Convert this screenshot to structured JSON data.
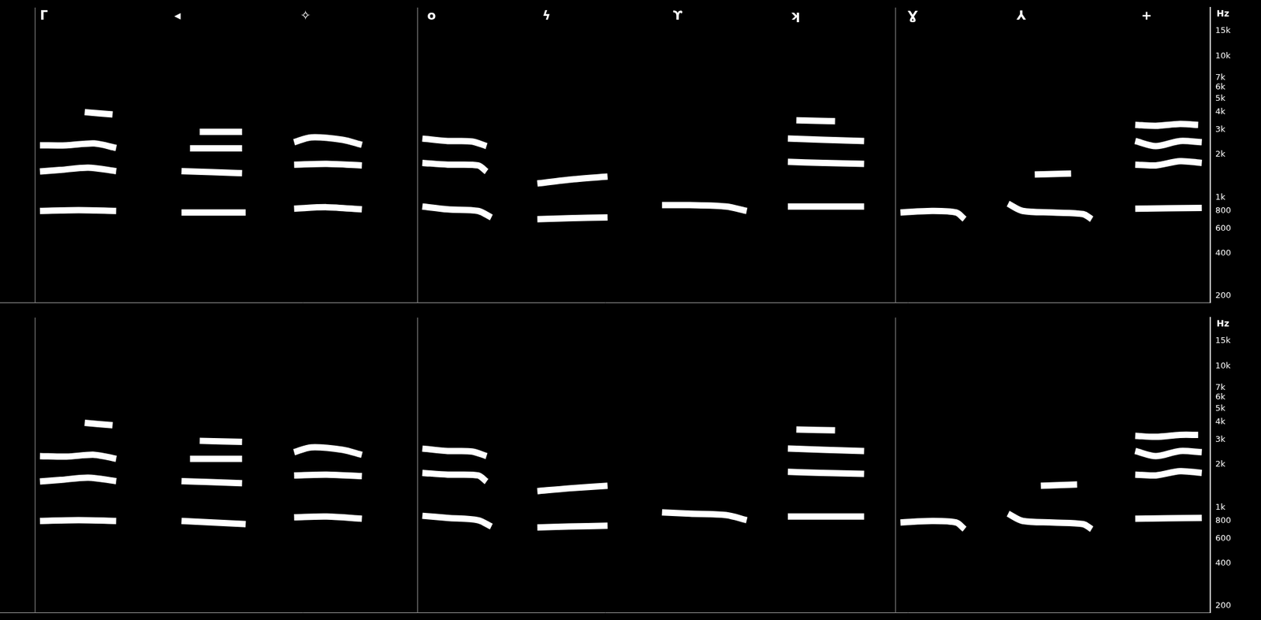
{
  "chart_data": [
    {
      "type": "line",
      "y_label": "Hz",
      "log": "y",
      "grid": false,
      "tick_labels": "y",
      "color": "#ffffff",
      "segment_labels": [
        "ᒥ",
        "◂",
        "✧",
        "o",
        "ϟ",
        "ϒ",
        "ʞ",
        "Ɣ",
        "⅄",
        "+"
      ],
      "segment_x": [
        3.2,
        14.3,
        24.7,
        35.2,
        44.7,
        55.5,
        65.2,
        74.9,
        83.9,
        94.2
      ],
      "boundaries": [
        2.9,
        34.5,
        74.0
      ],
      "xlim": [
        0,
        100
      ],
      "ylim": [
        180,
        22000
      ],
      "yticks": [
        200,
        400,
        600,
        800,
        {
          "value": 1000,
          "label": "1k"
        },
        {
          "value": 2000,
          "label": "2k"
        },
        {
          "value": 3000,
          "label": "3k"
        },
        {
          "value": 4000,
          "label": "4k"
        },
        {
          "value": 5000,
          "label": "5k"
        },
        {
          "value": 6000,
          "label": "6k"
        },
        {
          "value": 7000,
          "label": "7k"
        },
        {
          "value": 10000,
          "label": "10k"
        },
        {
          "value": 15000,
          "label": "15k"
        }
      ],
      "series": [
        {
          "x": [
            3.3,
            6.5,
            9.6
          ],
          "values": [
            800,
            810,
            800
          ]
        },
        {
          "x": [
            3.3,
            5,
            7.3,
            9.6
          ],
          "values": [
            1520,
            1560,
            1620,
            1530
          ]
        },
        {
          "x": [
            3.3,
            5.5,
            7.8,
            9.6
          ],
          "values": [
            2330,
            2330,
            2400,
            2230
          ]
        },
        {
          "x": [
            7,
            9.3
          ],
          "values": [
            4000,
            3850
          ]
        },
        {
          "x": [
            15,
            20.3
          ],
          "values": [
            780,
            780
          ]
        },
        {
          "x": [
            15,
            20
          ],
          "values": [
            1530,
            1480
          ]
        },
        {
          "x": [
            15.7,
            20
          ],
          "values": [
            2220,
            2220
          ]
        },
        {
          "x": [
            16.5,
            20
          ],
          "values": [
            2900,
            2900
          ]
        },
        {
          "x": [
            24.3,
            27,
            29.9
          ],
          "values": [
            830,
            850,
            820
          ]
        },
        {
          "x": [
            24.3,
            27,
            29.9
          ],
          "values": [
            1700,
            1720,
            1680
          ]
        },
        {
          "x": [
            24.3,
            25.7,
            28.3,
            29.9
          ],
          "values": [
            2450,
            2650,
            2550,
            2350
          ]
        },
        {
          "x": [
            34.9,
            37,
            39.5,
            40.6
          ],
          "values": [
            860,
            820,
            800,
            720
          ]
        },
        {
          "x": [
            34.9,
            37,
            39.5,
            40.2
          ],
          "values": [
            1750,
            1700,
            1680,
            1520
          ]
        },
        {
          "x": [
            34.9,
            37,
            39,
            40.2
          ],
          "values": [
            2600,
            2500,
            2480,
            2300
          ]
        },
        {
          "x": [
            44.4,
            47,
            50.2
          ],
          "values": [
            700,
            710,
            720
          ]
        },
        {
          "x": [
            44.4,
            47,
            50.2
          ],
          "values": [
            1250,
            1330,
            1400
          ]
        },
        {
          "x": [
            54.7,
            57,
            60,
            61.7
          ],
          "values": [
            880,
            880,
            860,
            800
          ]
        },
        {
          "x": [
            65.1,
            71.4
          ],
          "values": [
            860,
            860
          ]
        },
        {
          "x": [
            65.1,
            68,
            71.4
          ],
          "values": [
            1780,
            1750,
            1720
          ]
        },
        {
          "x": [
            65.1,
            68,
            71.4
          ],
          "values": [
            2600,
            2550,
            2500
          ]
        },
        {
          "x": [
            65.8,
            69
          ],
          "values": [
            3500,
            3450
          ]
        },
        {
          "x": [
            74.4,
            77,
            79,
            79.7
          ],
          "values": [
            780,
            800,
            780,
            700
          ]
        },
        {
          "x": [
            83.3,
            84.5,
            87,
            89.5,
            90.2
          ],
          "values": [
            900,
            800,
            780,
            760,
            700
          ]
        },
        {
          "x": [
            85.5,
            88.5
          ],
          "values": [
            1450,
            1470
          ]
        },
        {
          "x": [
            93.8,
            99.3
          ],
          "values": [
            830,
            840
          ]
        },
        {
          "x": [
            93.8,
            95.5,
            97.5,
            99.3
          ],
          "values": [
            1700,
            1680,
            1800,
            1750
          ]
        },
        {
          "x": [
            93.8,
            95.5,
            97.5,
            99.3
          ],
          "values": [
            2500,
            2300,
            2500,
            2450
          ]
        },
        {
          "x": [
            93.8,
            95.5,
            97.5,
            99
          ],
          "values": [
            3250,
            3200,
            3300,
            3250
          ]
        }
      ]
    },
    {
      "type": "line",
      "y_label": "Hz",
      "log": "y",
      "grid": false,
      "tick_labels": "y",
      "color": "#ffffff",
      "boundaries": [
        2.9,
        34.5,
        74.0
      ],
      "xlim": [
        0,
        100
      ],
      "ylim": [
        180,
        22000
      ],
      "yticks": [
        200,
        400,
        600,
        800,
        {
          "value": 1000,
          "label": "1k"
        },
        {
          "value": 2000,
          "label": "2k"
        },
        {
          "value": 3000,
          "label": "3k"
        },
        {
          "value": 4000,
          "label": "4k"
        },
        {
          "value": 5000,
          "label": "5k"
        },
        {
          "value": 6000,
          "label": "6k"
        },
        {
          "value": 7000,
          "label": "7k"
        },
        {
          "value": 10000,
          "label": "10k"
        },
        {
          "value": 15000,
          "label": "15k"
        }
      ],
      "series": [
        {
          "x": [
            3.3,
            6.5,
            9.6
          ],
          "values": [
            800,
            810,
            800
          ]
        },
        {
          "x": [
            3.3,
            5,
            7.3,
            9.6
          ],
          "values": [
            1520,
            1560,
            1620,
            1530
          ]
        },
        {
          "x": [
            3.3,
            5.5,
            7.8,
            9.6
          ],
          "values": [
            2300,
            2280,
            2350,
            2200
          ]
        },
        {
          "x": [
            7,
            9.3
          ],
          "values": [
            3950,
            3800
          ]
        },
        {
          "x": [
            15,
            20.3
          ],
          "values": [
            800,
            760
          ]
        },
        {
          "x": [
            15,
            20
          ],
          "values": [
            1530,
            1480
          ]
        },
        {
          "x": [
            15.7,
            20
          ],
          "values": [
            2200,
            2200
          ]
        },
        {
          "x": [
            16.5,
            20
          ],
          "values": [
            2950,
            2900
          ]
        },
        {
          "x": [
            24.3,
            27,
            29.9
          ],
          "values": [
            850,
            860,
            830
          ]
        },
        {
          "x": [
            24.3,
            27,
            29.9
          ],
          "values": [
            1680,
            1700,
            1660
          ]
        },
        {
          "x": [
            24.3,
            25.7,
            28.3,
            29.9
          ],
          "values": [
            2450,
            2650,
            2550,
            2350
          ]
        },
        {
          "x": [
            34.9,
            37,
            39.5,
            40.6
          ],
          "values": [
            870,
            840,
            810,
            730
          ]
        },
        {
          "x": [
            34.9,
            37,
            39.5,
            40.2
          ],
          "values": [
            1750,
            1700,
            1680,
            1520
          ]
        },
        {
          "x": [
            34.9,
            37,
            39,
            40.2
          ],
          "values": [
            2600,
            2500,
            2480,
            2300
          ]
        },
        {
          "x": [
            44.4,
            47,
            50.2
          ],
          "values": [
            720,
            730,
            740
          ]
        },
        {
          "x": [
            44.4,
            47,
            50.2
          ],
          "values": [
            1300,
            1360,
            1420
          ]
        },
        {
          "x": [
            54.7,
            57,
            60,
            61.7
          ],
          "values": [
            920,
            900,
            880,
            810
          ]
        },
        {
          "x": [
            65.1,
            71.4
          ],
          "values": [
            860,
            860
          ]
        },
        {
          "x": [
            65.1,
            68,
            71.4
          ],
          "values": [
            1780,
            1750,
            1720
          ]
        },
        {
          "x": [
            65.1,
            68,
            71.4
          ],
          "values": [
            2600,
            2550,
            2500
          ]
        },
        {
          "x": [
            65.8,
            69
          ],
          "values": [
            3550,
            3500
          ]
        },
        {
          "x": [
            74.4,
            77,
            79,
            79.7
          ],
          "values": [
            780,
            800,
            780,
            700
          ]
        },
        {
          "x": [
            83.3,
            84.5,
            87,
            89.5,
            90.2
          ],
          "values": [
            900,
            800,
            780,
            760,
            700
          ]
        },
        {
          "x": [
            86,
            89
          ],
          "values": [
            1420,
            1450
          ]
        },
        {
          "x": [
            93.8,
            99.3
          ],
          "values": [
            830,
            840
          ]
        },
        {
          "x": [
            93.8,
            95.5,
            97.5,
            99.3
          ],
          "values": [
            1700,
            1680,
            1800,
            1750
          ]
        },
        {
          "x": [
            93.8,
            95.5,
            97.5,
            99.3
          ],
          "values": [
            2500,
            2300,
            2500,
            2450
          ]
        },
        {
          "x": [
            93.8,
            95.5,
            97.5,
            99
          ],
          "values": [
            3200,
            3150,
            3250,
            3250
          ]
        }
      ]
    }
  ]
}
